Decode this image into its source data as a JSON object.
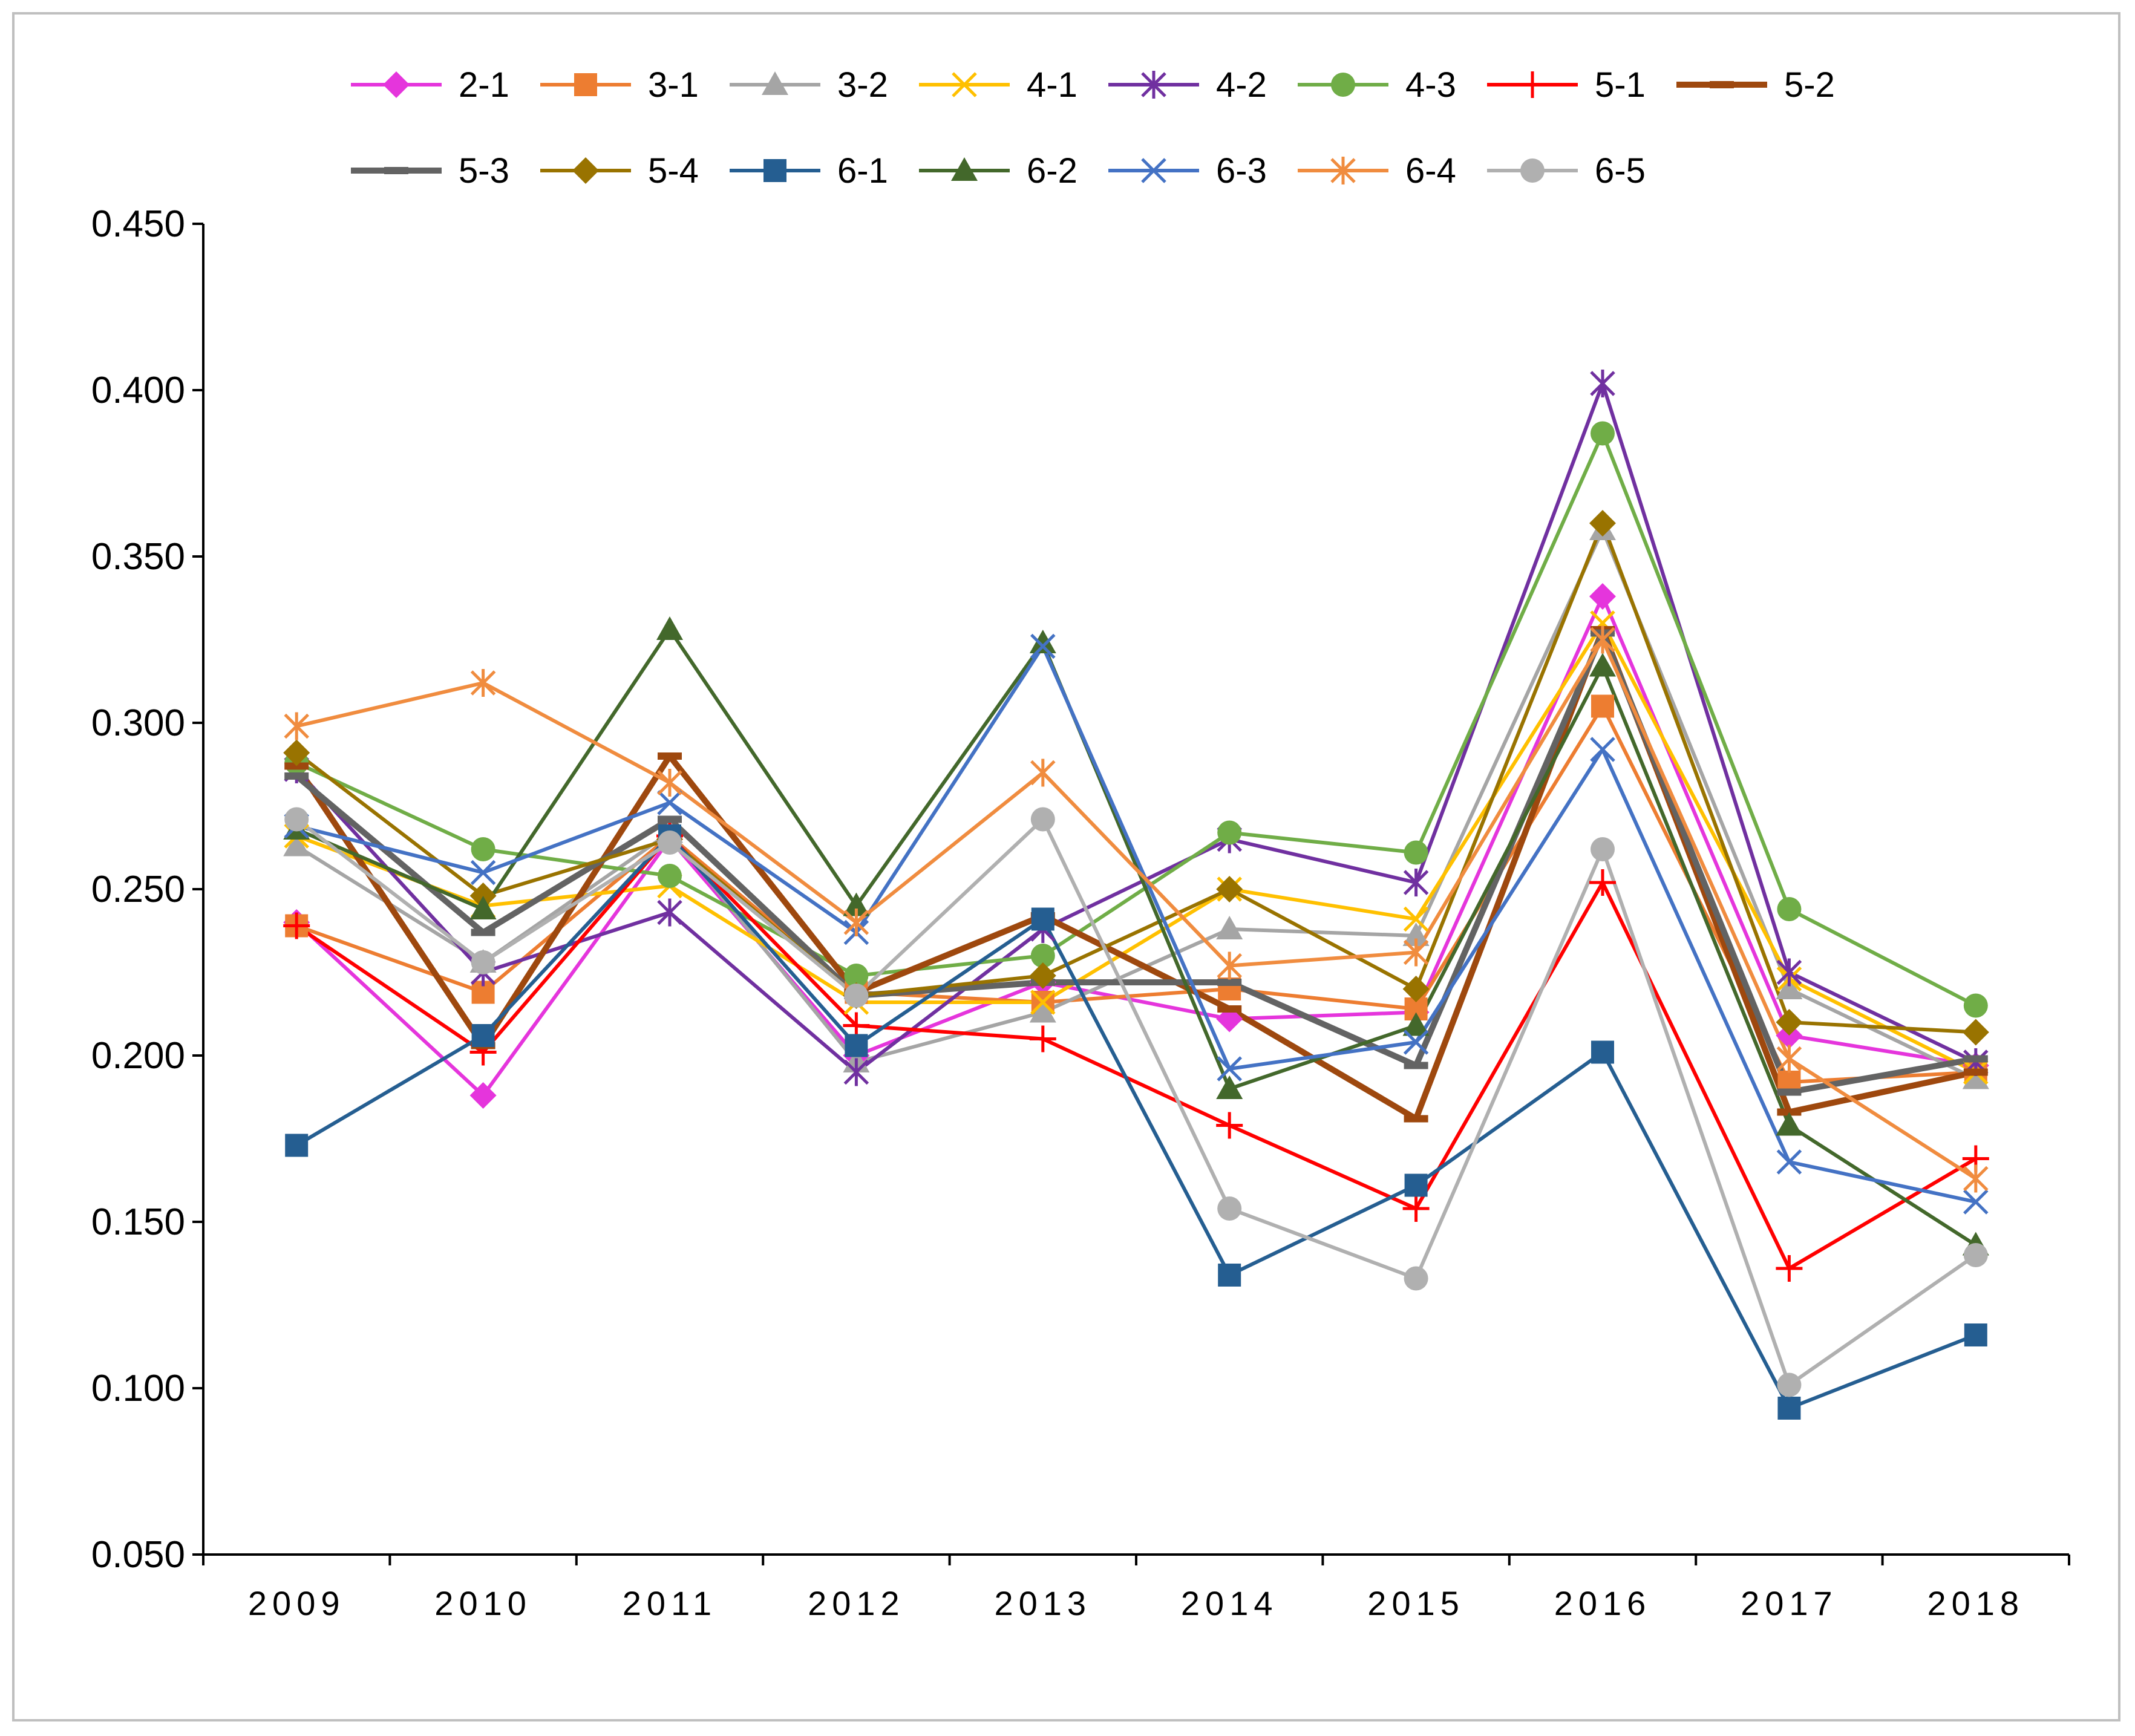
{
  "chart_data": {
    "type": "line",
    "title": "",
    "xlabel": "",
    "ylabel": "",
    "ylim": [
      0.05,
      0.45
    ],
    "y_ticks": [
      "0.450",
      "0.400",
      "0.350",
      "0.300",
      "0.250",
      "0.200",
      "0.150",
      "0.100",
      "0.050"
    ],
    "grid": false,
    "legend_position": "top",
    "categories": [
      "2009",
      "2010",
      "2011",
      "2012",
      "2013",
      "2014",
      "2015",
      "2016",
      "2017",
      "2018"
    ],
    "series": [
      {
        "name": "2-1",
        "color": "#E535DC",
        "marker": "diamond",
        "values": [
          0.24,
          0.188,
          0.265,
          0.2,
          0.222,
          0.211,
          0.213,
          0.338,
          0.206,
          0.197
        ]
      },
      {
        "name": "3-1",
        "color": "#ED7D31",
        "marker": "square",
        "values": [
          0.239,
          0.219,
          0.266,
          0.219,
          0.216,
          0.22,
          0.214,
          0.305,
          0.192,
          0.195
        ]
      },
      {
        "name": "3-2",
        "color": "#A5A5A5",
        "marker": "triangle",
        "values": [
          0.263,
          0.228,
          0.267,
          0.198,
          0.213,
          0.238,
          0.236,
          0.358,
          0.22,
          0.193
        ]
      },
      {
        "name": "4-1",
        "color": "#FFC000",
        "marker": "x",
        "values": [
          0.266,
          0.245,
          0.251,
          0.216,
          0.216,
          0.25,
          0.241,
          0.33,
          0.223,
          0.195
        ]
      },
      {
        "name": "4-2",
        "color": "#7030A0",
        "marker": "asterisk",
        "values": [
          0.286,
          0.225,
          0.243,
          0.195,
          0.238,
          0.265,
          0.252,
          0.402,
          0.225,
          0.198
        ]
      },
      {
        "name": "4-3",
        "color": "#70AD47",
        "marker": "circle",
        "values": [
          0.288,
          0.262,
          0.254,
          0.224,
          0.23,
          0.267,
          0.261,
          0.387,
          0.244,
          0.215
        ]
      },
      {
        "name": "5-1",
        "color": "#FF0000",
        "marker": "plus",
        "values": [
          0.239,
          0.201,
          0.266,
          0.209,
          0.205,
          0.179,
          0.154,
          0.252,
          0.136,
          0.169
        ]
      },
      {
        "name": "5-2",
        "color": "#9E480E",
        "marker": "dash",
        "values": [
          0.287,
          0.203,
          0.29,
          0.219,
          0.242,
          0.214,
          0.181,
          0.328,
          0.183,
          0.195
        ]
      },
      {
        "name": "5-3",
        "color": "#636363",
        "marker": "dash",
        "values": [
          0.284,
          0.237,
          0.271,
          0.218,
          0.222,
          0.222,
          0.197,
          0.327,
          0.189,
          0.199
        ]
      },
      {
        "name": "5-4",
        "color": "#997300",
        "marker": "diamond",
        "values": [
          0.291,
          0.248,
          0.265,
          0.218,
          0.224,
          0.25,
          0.22,
          0.36,
          0.21,
          0.207
        ]
      },
      {
        "name": "6-1",
        "color": "#255E91",
        "marker": "square",
        "values": [
          0.173,
          0.206,
          0.266,
          0.203,
          0.241,
          0.134,
          0.161,
          0.201,
          0.094,
          0.116
        ]
      },
      {
        "name": "6-2",
        "color": "#43682B",
        "marker": "triangle",
        "values": [
          0.268,
          0.244,
          0.328,
          0.245,
          0.324,
          0.19,
          0.209,
          0.317,
          0.179,
          0.143
        ]
      },
      {
        "name": "6-3",
        "color": "#4472C4",
        "marker": "x",
        "values": [
          0.269,
          0.255,
          0.276,
          0.237,
          0.323,
          0.196,
          0.204,
          0.292,
          0.168,
          0.156
        ]
      },
      {
        "name": "6-4",
        "color": "#F08C3F",
        "marker": "asterisk",
        "values": [
          0.299,
          0.312,
          0.282,
          0.24,
          0.285,
          0.227,
          0.231,
          0.325,
          0.199,
          0.163
        ]
      },
      {
        "name": "6-5",
        "color": "#B0B0B0",
        "marker": "circle",
        "values": [
          0.271,
          0.228,
          0.264,
          0.218,
          0.271,
          0.154,
          0.133,
          0.262,
          0.101,
          0.14
        ]
      }
    ]
  }
}
